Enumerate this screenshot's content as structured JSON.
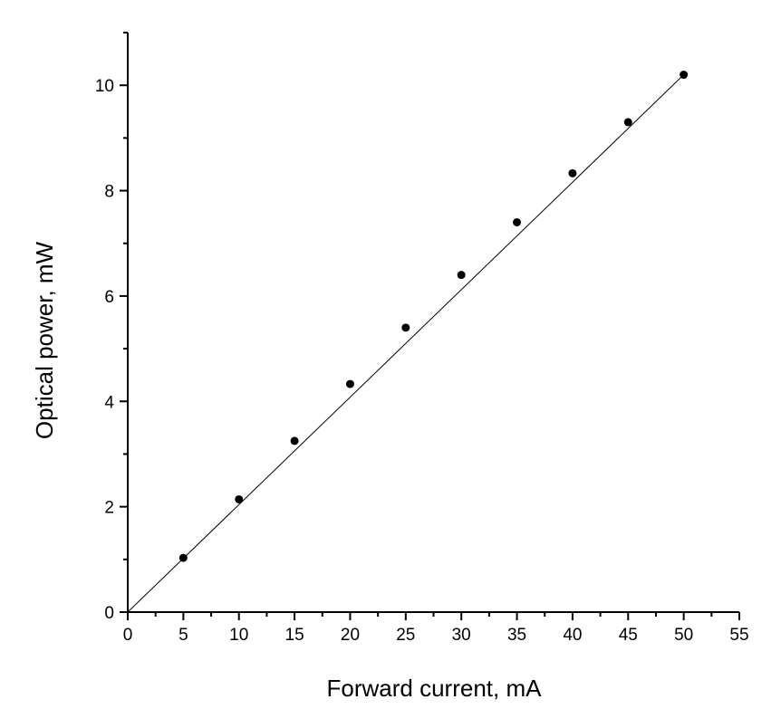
{
  "chart_data": {
    "type": "scatter",
    "title": "",
    "xlabel": "Forward current, mA",
    "ylabel": "Optical power, mW",
    "xlim": [
      0,
      55
    ],
    "ylim": [
      0,
      11
    ],
    "x_ticks": [
      "0",
      "5",
      "10",
      "15",
      "20",
      "25",
      "30",
      "35",
      "40",
      "45",
      "50",
      "55"
    ],
    "y_ticks": [
      "0",
      "2",
      "4",
      "6",
      "8",
      "10"
    ],
    "grid": false,
    "legend": "none",
    "colors": {
      "points": "#000000",
      "fit_line": "#000000",
      "axes": "#000000"
    },
    "series": [
      {
        "x": [
          5,
          10,
          15,
          20,
          25,
          30,
          35,
          40,
          45,
          50
        ],
        "y": [
          1.03,
          2.14,
          3.25,
          4.33,
          5.4,
          6.4,
          7.4,
          8.33,
          9.3,
          10.2
        ]
      }
    ],
    "fit_line": {
      "x": [
        0,
        50
      ],
      "y": [
        0,
        10.2
      ]
    }
  }
}
